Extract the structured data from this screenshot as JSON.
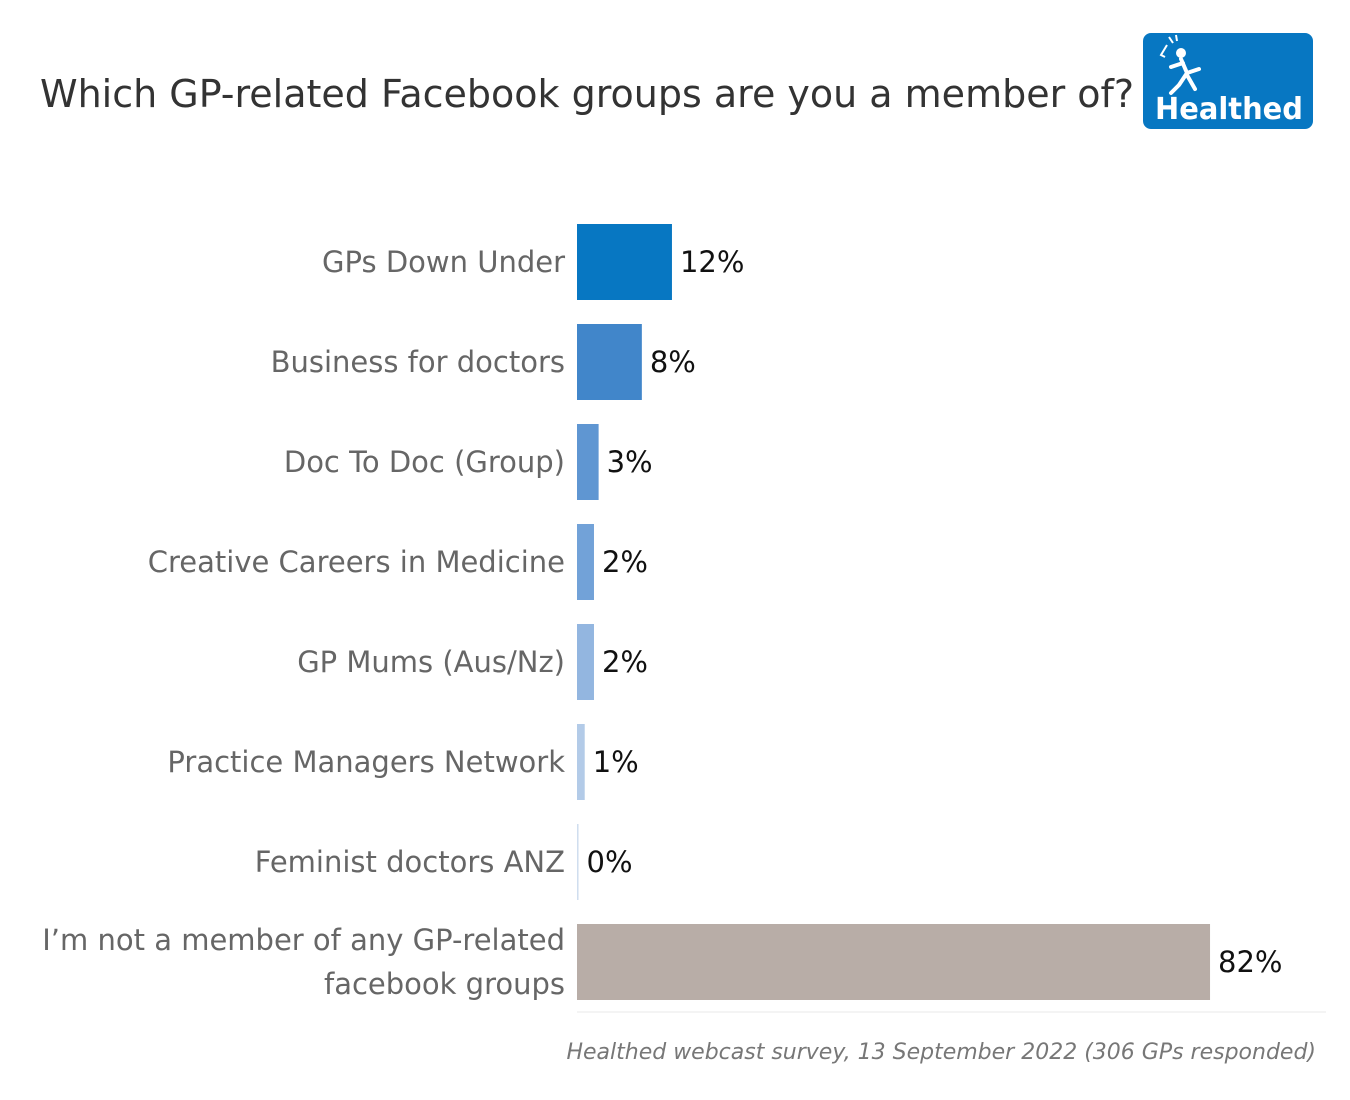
{
  "chart_data": {
    "type": "bar",
    "orientation": "horizontal",
    "title": "Which GP-related Facebook groups are you a member of?",
    "categories": [
      [
        "GPs Down Under"
      ],
      [
        "Business for doctors"
      ],
      [
        "Doc To Doc (Group)"
      ],
      [
        "Creative Careers in Medicine"
      ],
      [
        "GP Mums (Aus/Nz)"
      ],
      [
        "Practice Managers Network"
      ],
      [
        "Feminist doctors ANZ"
      ],
      [
        "I’m not a member of any GP-related",
        "facebook groups"
      ]
    ],
    "values": [
      12.3,
      8.4,
      2.8,
      2.2,
      2.2,
      1.0,
      0.2,
      82.0
    ],
    "value_labels": [
      "12%",
      "8%",
      "3%",
      "2%",
      "2%",
      "1%",
      "0%",
      "82%"
    ],
    "colors": [
      "#0777c2",
      "#4186ca",
      "#5f96d2",
      "#72a2d8",
      "#93b6e0",
      "#b3cbe8",
      "#d0deef",
      "#b8ada7"
    ],
    "xlim": [
      0,
      100
    ],
    "grid": false,
    "legend": "none",
    "source": "Healthed webcast survey, 13 September 2022 (306 GPs responded)"
  },
  "logo": {
    "text": "Healthed",
    "bg_color": "#0777c2",
    "icon": "hermes-runner-icon"
  }
}
